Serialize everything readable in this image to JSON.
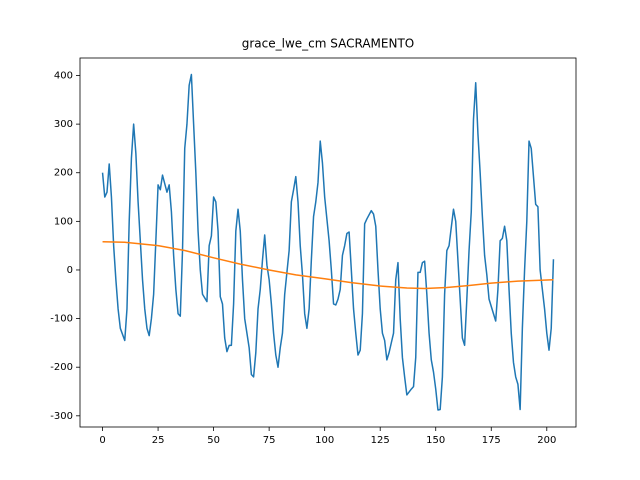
{
  "chart_data": {
    "type": "line",
    "title": "grace_lwe_cm SACRAMENTO",
    "xlim": [
      -10.15,
      213.15
    ],
    "xticks": [
      0,
      25,
      50,
      75,
      100,
      125,
      150,
      175,
      200
    ],
    "ylim": [
      -323,
      436
    ],
    "yticks": [
      -300,
      -200,
      -100,
      0,
      100,
      200,
      300,
      400
    ],
    "series": [
      {
        "color": "#1f77b4",
        "x": [
          0,
          1,
          2,
          3,
          4,
          5,
          6,
          7,
          8,
          10,
          11,
          12,
          13,
          14,
          15,
          16,
          17,
          18,
          19,
          20,
          21,
          22,
          23,
          24,
          25,
          26,
          27,
          29,
          30,
          31,
          32,
          33,
          34,
          35,
          36,
          37,
          38,
          39,
          40,
          41,
          42,
          43,
          44,
          45,
          47,
          48,
          49,
          50,
          51,
          52,
          53,
          54,
          55,
          56,
          57,
          58,
          59,
          60,
          61,
          62,
          63,
          64,
          66,
          67,
          68,
          69,
          70,
          71,
          72,
          73,
          74,
          75,
          76,
          77,
          78,
          79,
          80,
          81,
          82,
          84,
          85,
          86,
          87,
          88,
          89,
          90,
          91,
          92,
          93,
          94,
          95,
          96,
          97,
          98,
          99,
          100,
          102,
          103,
          104,
          105,
          106,
          107,
          108,
          109,
          110,
          111,
          112,
          113,
          114,
          115,
          116,
          117,
          118,
          119,
          121,
          122,
          123,
          124,
          125,
          126,
          127,
          128,
          129,
          130,
          131,
          132,
          133,
          134,
          135,
          136,
          137,
          139,
          140,
          141,
          142,
          143,
          144,
          145,
          146,
          147,
          148,
          149,
          150,
          151,
          152,
          153,
          154,
          155,
          156,
          158,
          159,
          160,
          161,
          162,
          163,
          164,
          165,
          166,
          167,
          168,
          169,
          170,
          171,
          172,
          173,
          174,
          176,
          177,
          178,
          179,
          180,
          181,
          182,
          183,
          184,
          185,
          186,
          187,
          188,
          189,
          190,
          191,
          192,
          193,
          195,
          196,
          197,
          198,
          199,
          200,
          201,
          202,
          203
        ],
        "values": [
          200,
          150,
          160,
          218,
          150,
          50,
          -20,
          -80,
          -120,
          -145,
          -80,
          100,
          230,
          300,
          240,
          140,
          60,
          -20,
          -80,
          -120,
          -135,
          -100,
          -50,
          60,
          175,
          165,
          195,
          160,
          175,
          120,
          30,
          -40,
          -90,
          -95,
          40,
          250,
          300,
          380,
          402,
          300,
          200,
          80,
          0,
          -50,
          -65,
          50,
          70,
          150,
          140,
          80,
          -55,
          -70,
          -140,
          -168,
          -155,
          -155,
          -70,
          80,
          125,
          80,
          -20,
          -100,
          -160,
          -215,
          -220,
          -170,
          -80,
          -40,
          20,
          72,
          10,
          -20,
          -70,
          -130,
          -175,
          -200,
          -160,
          -130,
          -50,
          40,
          140,
          165,
          192,
          140,
          50,
          -10,
          -90,
          -120,
          -80,
          20,
          110,
          140,
          180,
          265,
          220,
          150,
          60,
          0,
          -70,
          -72,
          -60,
          -40,
          30,
          50,
          75,
          78,
          0,
          -80,
          -130,
          -175,
          -165,
          -90,
          95,
          105,
          122,
          115,
          90,
          0,
          -80,
          -130,
          -145,
          -185,
          -170,
          -150,
          -130,
          -20,
          15,
          -100,
          -180,
          -220,
          -257,
          -245,
          -240,
          -180,
          -5,
          -5,
          15,
          18,
          -50,
          -130,
          -185,
          -210,
          -245,
          -288,
          -287,
          -220,
          -50,
          40,
          50,
          125,
          100,
          20,
          -60,
          -140,
          -155,
          -60,
          40,
          120,
          310,
          385,
          280,
          200,
          110,
          30,
          -10,
          -60,
          -90,
          -105,
          -40,
          60,
          65,
          90,
          60,
          -40,
          -130,
          -190,
          -220,
          -235,
          -287,
          -120,
          0,
          100,
          265,
          250,
          135,
          130,
          0,
          -40,
          -80,
          -130,
          -165,
          -120,
          22
        ]
      },
      {
        "color": "#ff7f0e",
        "x": [
          0,
          10,
          25,
          37,
          50,
          62,
          75,
          87,
          100,
          112,
          125,
          137,
          145,
          155,
          165,
          175,
          187,
          203
        ],
        "values": [
          58,
          57,
          50,
          40,
          25,
          12,
          0,
          -10,
          -18,
          -26,
          -33,
          -37,
          -38,
          -36,
          -32,
          -27,
          -23,
          -20
        ]
      }
    ]
  }
}
